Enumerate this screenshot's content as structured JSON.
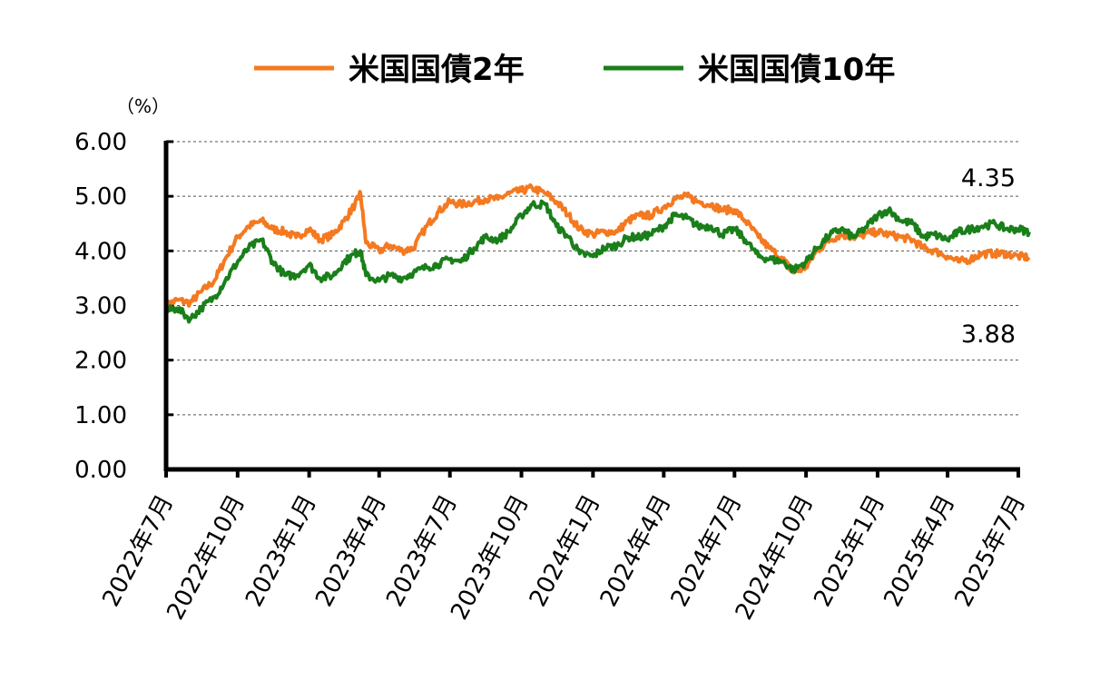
{
  "chart_data": {
    "type": "line",
    "unit_label": "（%）",
    "ylim": [
      0,
      6
    ],
    "yticks": [
      "0.00",
      "1.00",
      "2.00",
      "3.00",
      "4.00",
      "5.00",
      "6.00"
    ],
    "x_tick_labels": [
      "2022年7月",
      "2022年10月",
      "2023年1月",
      "2023年4月",
      "2023年7月",
      "2023年10月",
      "2024年1月",
      "2024年4月",
      "2024年7月",
      "2024年10月",
      "2025年1月",
      "2025年4月",
      "2025年7月"
    ],
    "grid": "horizontal dashed",
    "legend_position": "top",
    "annotations": [
      "4.35",
      "3.88"
    ],
    "series": [
      {
        "name": "米国国債2年",
        "color": "#f47920",
        "x": [
          "2022-07-01",
          "2022-07-15",
          "2022-08-01",
          "2022-08-15",
          "2022-09-01",
          "2022-09-15",
          "2022-10-01",
          "2022-10-15",
          "2022-11-01",
          "2022-11-15",
          "2022-12-01",
          "2022-12-15",
          "2023-01-01",
          "2023-01-15",
          "2023-02-01",
          "2023-02-15",
          "2023-03-01",
          "2023-03-08",
          "2023-03-15",
          "2023-04-01",
          "2023-04-15",
          "2023-05-01",
          "2023-05-15",
          "2023-06-01",
          "2023-06-15",
          "2023-07-01",
          "2023-07-15",
          "2023-08-01",
          "2023-08-15",
          "2023-09-01",
          "2023-09-15",
          "2023-10-01",
          "2023-10-15",
          "2023-11-01",
          "2023-11-15",
          "2023-12-01",
          "2023-12-15",
          "2024-01-01",
          "2024-01-15",
          "2024-02-01",
          "2024-02-15",
          "2024-03-01",
          "2024-03-15",
          "2024-04-01",
          "2024-04-15",
          "2024-05-01",
          "2024-05-15",
          "2024-06-01",
          "2024-06-15",
          "2024-07-01",
          "2024-07-15",
          "2024-08-01",
          "2024-08-15",
          "2024-09-01",
          "2024-09-15",
          "2024-10-01",
          "2024-10-15",
          "2024-11-01",
          "2024-11-15",
          "2024-12-01",
          "2024-12-15",
          "2025-01-01",
          "2025-01-15",
          "2025-02-01",
          "2025-02-15",
          "2025-03-01",
          "2025-03-15",
          "2025-04-01",
          "2025-04-15",
          "2025-05-01",
          "2025-05-15",
          "2025-06-01",
          "2025-06-15",
          "2025-07-01",
          "2025-07-15"
        ],
        "values": [
          3.0,
          3.1,
          3.05,
          3.25,
          3.45,
          3.85,
          4.25,
          4.45,
          4.55,
          4.4,
          4.35,
          4.25,
          4.4,
          4.2,
          4.3,
          4.55,
          4.85,
          5.05,
          4.15,
          4.0,
          4.1,
          4.0,
          4.05,
          4.45,
          4.7,
          4.9,
          4.85,
          4.9,
          4.95,
          4.95,
          5.05,
          5.1,
          5.15,
          5.05,
          4.9,
          4.65,
          4.4,
          4.3,
          4.35,
          4.35,
          4.55,
          4.65,
          4.65,
          4.8,
          4.95,
          5.0,
          4.9,
          4.85,
          4.75,
          4.75,
          4.55,
          4.25,
          4.05,
          3.85,
          3.6,
          3.7,
          4.0,
          4.2,
          4.3,
          4.25,
          4.3,
          4.35,
          4.3,
          4.25,
          4.2,
          4.05,
          4.0,
          3.9,
          3.8,
          3.85,
          3.95,
          3.95,
          3.95,
          3.9,
          3.88
        ]
      },
      {
        "name": "米国国債10年",
        "color": "#1a7f1a",
        "x": [
          "2022-07-01",
          "2022-07-15",
          "2022-08-01",
          "2022-08-15",
          "2022-09-01",
          "2022-09-15",
          "2022-10-01",
          "2022-10-15",
          "2022-11-01",
          "2022-11-15",
          "2022-12-01",
          "2022-12-15",
          "2023-01-01",
          "2023-01-15",
          "2023-02-01",
          "2023-02-15",
          "2023-03-01",
          "2023-03-08",
          "2023-03-15",
          "2023-04-01",
          "2023-04-15",
          "2023-05-01",
          "2023-05-15",
          "2023-06-01",
          "2023-06-15",
          "2023-07-01",
          "2023-07-15",
          "2023-08-01",
          "2023-08-15",
          "2023-09-01",
          "2023-09-15",
          "2023-10-01",
          "2023-10-15",
          "2023-11-01",
          "2023-11-15",
          "2023-12-01",
          "2023-12-15",
          "2024-01-01",
          "2024-01-15",
          "2024-02-01",
          "2024-02-15",
          "2024-03-01",
          "2024-03-15",
          "2024-04-01",
          "2024-04-15",
          "2024-05-01",
          "2024-05-15",
          "2024-06-01",
          "2024-06-15",
          "2024-07-01",
          "2024-07-15",
          "2024-08-01",
          "2024-08-15",
          "2024-09-01",
          "2024-09-15",
          "2024-10-01",
          "2024-10-15",
          "2024-11-01",
          "2024-11-15",
          "2024-12-01",
          "2024-12-15",
          "2025-01-01",
          "2025-01-15",
          "2025-02-01",
          "2025-02-15",
          "2025-03-01",
          "2025-03-15",
          "2025-04-01",
          "2025-04-15",
          "2025-05-01",
          "2025-05-15",
          "2025-06-01",
          "2025-06-15",
          "2025-07-01",
          "2025-07-15"
        ],
        "values": [
          2.9,
          2.95,
          2.75,
          2.95,
          3.15,
          3.45,
          3.8,
          4.05,
          4.2,
          3.8,
          3.55,
          3.55,
          3.75,
          3.5,
          3.55,
          3.8,
          3.95,
          4.0,
          3.55,
          3.45,
          3.55,
          3.5,
          3.6,
          3.7,
          3.75,
          3.85,
          3.8,
          4.05,
          4.25,
          4.2,
          4.35,
          4.65,
          4.85,
          4.85,
          4.45,
          4.25,
          3.95,
          3.9,
          4.05,
          4.1,
          4.25,
          4.25,
          4.3,
          4.45,
          4.65,
          4.6,
          4.45,
          4.45,
          4.3,
          4.4,
          4.2,
          3.9,
          3.85,
          3.8,
          3.65,
          3.8,
          4.05,
          4.3,
          4.4,
          4.25,
          4.4,
          4.65,
          4.75,
          4.55,
          4.5,
          4.25,
          4.3,
          4.2,
          4.35,
          4.4,
          4.45,
          4.5,
          4.4,
          4.4,
          4.35
        ]
      }
    ]
  }
}
